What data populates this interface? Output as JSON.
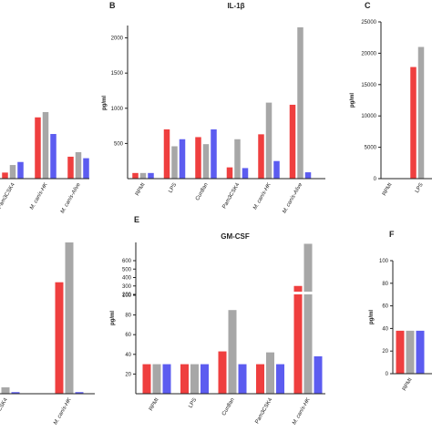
{
  "colors": {
    "series": [
      "#ef3f3f",
      "#a7a7a7",
      "#5c5cf0"
    ]
  },
  "chart_data": [
    {
      "id": "A",
      "panel_label": "",
      "type": "bar",
      "title": "",
      "ylabel": "",
      "categories": [
        "Pam3CSK4",
        "M. canis-HK",
        "M. canis-Alive"
      ],
      "series": [
        {
          "values": [
            80,
            810,
            290
          ]
        },
        {
          "values": [
            180,
            880,
            350
          ]
        },
        {
          "values": [
            220,
            590,
            270
          ]
        }
      ],
      "ylim": [
        0,
        2000
      ],
      "yticks": []
    },
    {
      "id": "B",
      "panel_label": "B",
      "type": "bar",
      "title": "IL-1β",
      "ylabel": "pg/ml",
      "categories": [
        "RPMI",
        "LPS",
        "Curdlan",
        "Pam3CSK4",
        "M. canis-HK",
        "M. canis-Alive"
      ],
      "series": [
        {
          "values": [
            80,
            700,
            590,
            160,
            630,
            1050
          ]
        },
        {
          "values": [
            80,
            460,
            490,
            560,
            1080,
            2150
          ]
        },
        {
          "values": [
            80,
            560,
            700,
            150,
            250,
            90
          ]
        }
      ],
      "ylim": [
        0,
        2150
      ],
      "yticks": [
        500,
        1000,
        1500,
        2000
      ]
    },
    {
      "id": "C",
      "panel_label": "C",
      "type": "bar",
      "title": "",
      "ylabel": "pg/ml",
      "categories": [
        "RPMI",
        "LPS"
      ],
      "series": [
        {
          "values": [
            0,
            17800
          ]
        },
        {
          "values": [
            0,
            21000
          ]
        }
      ],
      "ylim": [
        0,
        25000
      ],
      "yticks": [
        0,
        5000,
        10000,
        15000,
        20000,
        25000
      ]
    },
    {
      "id": "D",
      "panel_label": "",
      "type": "bar",
      "title": "",
      "ylabel": "",
      "categories": [
        "Pam3CSK4",
        "M. canis-HK"
      ],
      "series": [
        {
          "values": [
            10,
            700
          ]
        },
        {
          "values": [
            40,
            950
          ]
        },
        {
          "values": [
            10,
            10
          ]
        }
      ],
      "ylim": [
        0,
        950
      ],
      "yticks": []
    },
    {
      "id": "E",
      "panel_label": "E",
      "type": "bar",
      "title": "GM-CSF",
      "ylabel": "pg/ml",
      "categories": [
        "RPMI",
        "LPS",
        "Curdlan",
        "Pam3CSK4",
        "M. canis-HK"
      ],
      "series": [
        {
          "values": [
            30,
            30,
            43,
            30,
            300
          ]
        },
        {
          "values": [
            30,
            30,
            85,
            42,
            800
          ]
        },
        {
          "values": [
            30,
            30,
            30,
            30,
            38
          ]
        }
      ],
      "ylim": [
        0,
        800
      ],
      "yticks": [
        20,
        40,
        60,
        80,
        100,
        200,
        300,
        400,
        500,
        600
      ],
      "axis_break": {
        "lower": [
          0,
          100
        ],
        "upper": [
          200,
          600
        ]
      }
    },
    {
      "id": "F",
      "panel_label": "F",
      "type": "bar",
      "title": "",
      "ylabel": "pg/ml",
      "categories": [
        "RPMI"
      ],
      "series": [
        {
          "values": [
            38
          ]
        },
        {
          "values": [
            38
          ]
        },
        {
          "values": [
            38
          ]
        }
      ],
      "ylim": [
        0,
        100
      ],
      "yticks": [
        0,
        20,
        40,
        60,
        80,
        100
      ]
    }
  ]
}
